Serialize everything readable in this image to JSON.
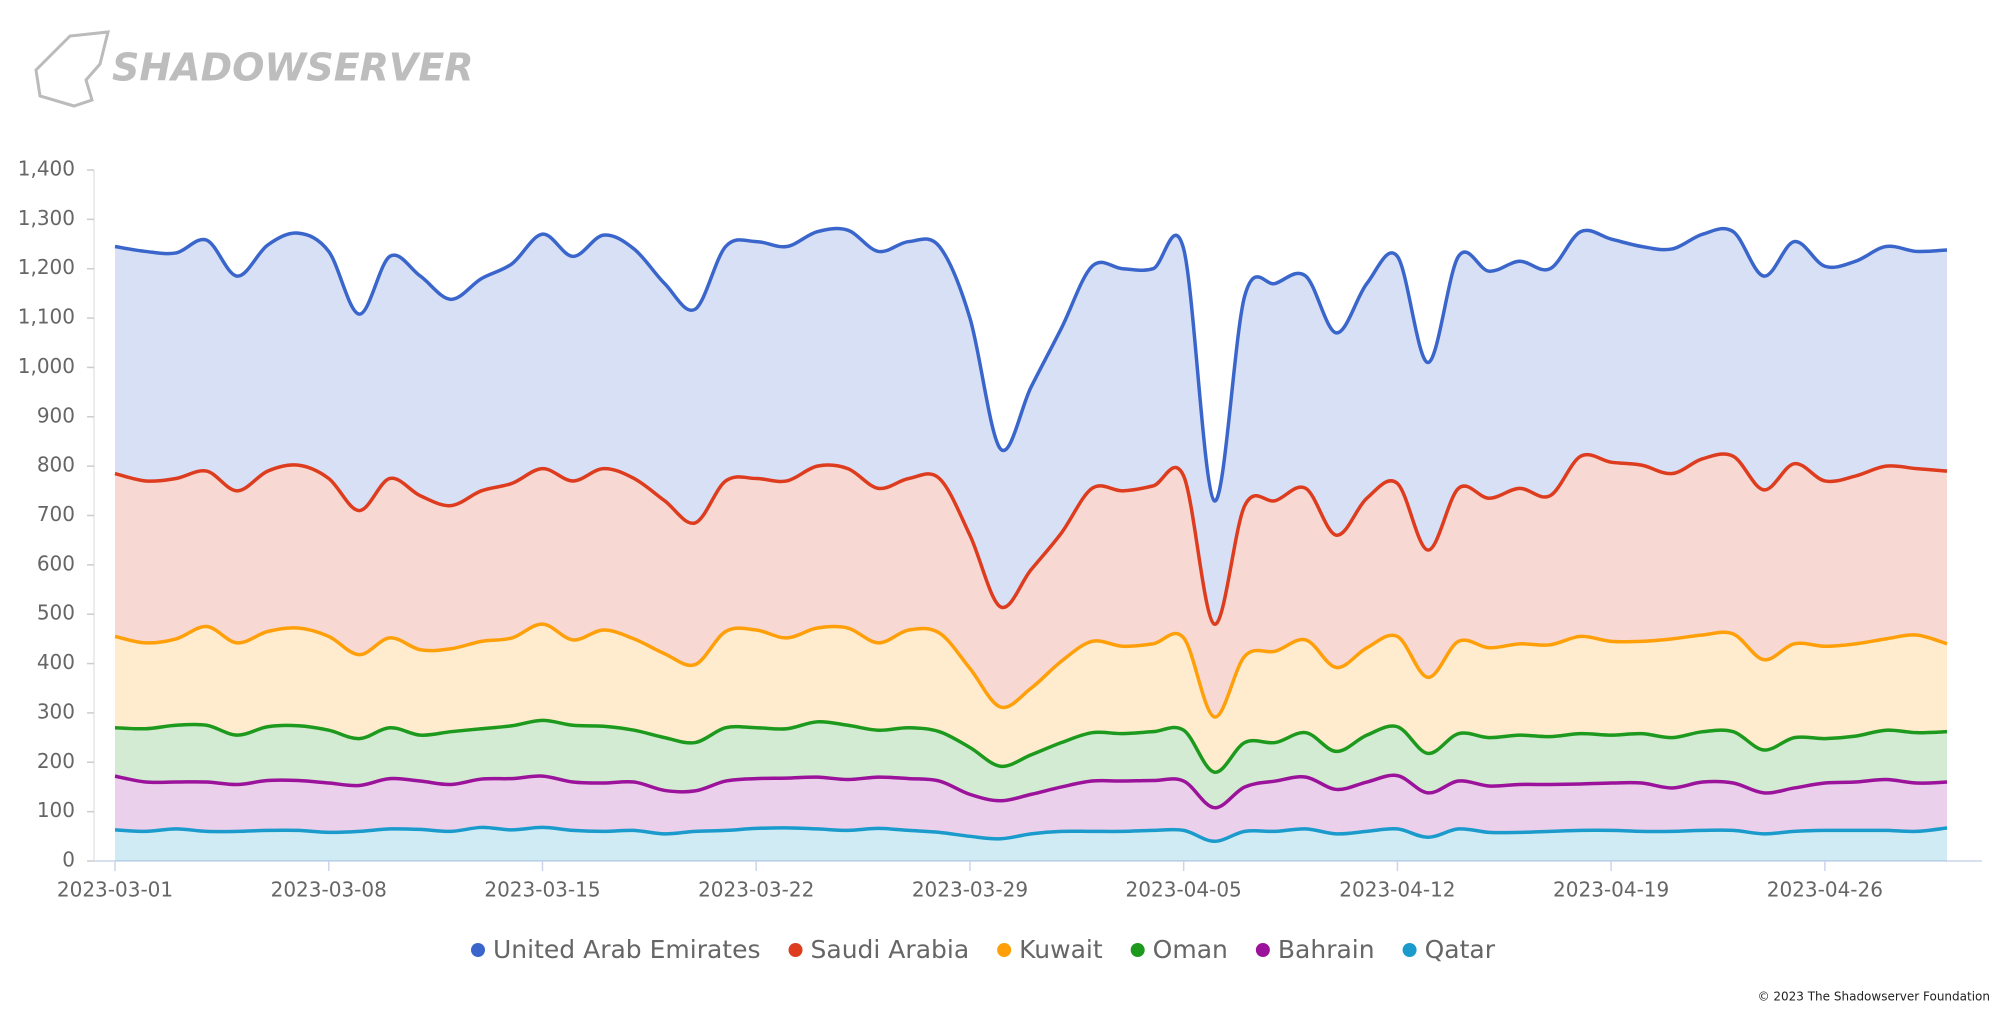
{
  "logo": "SHADOWSERVER",
  "copyright": "© 2023 The Shadowserver Foundation",
  "chart_data": {
    "type": "stacked_area",
    "categories": [
      "2023-03-01",
      null,
      null,
      null,
      null,
      null,
      null,
      "2023-03-08",
      null,
      null,
      null,
      null,
      null,
      null,
      "2023-03-15",
      null,
      null,
      null,
      null,
      null,
      null,
      "2023-03-22",
      null,
      null,
      null,
      null,
      null,
      null,
      "2023-03-29",
      null,
      null,
      null,
      null,
      null,
      null,
      "2023-04-05",
      null,
      null,
      null,
      null,
      null,
      null,
      "2023-04-12",
      null,
      null,
      null,
      null,
      null,
      null,
      "2023-04-19",
      null,
      null,
      null,
      null,
      null,
      null,
      "2023-04-26",
      null,
      null,
      null,
      null
    ],
    "ylim": [
      0,
      1400
    ],
    "yticks": [
      0,
      100,
      200,
      300,
      400,
      500,
      600,
      700,
      800,
      900,
      {
        "value": 1000,
        "label": "1,000"
      },
      {
        "value": 1100,
        "label": "1,100"
      },
      {
        "value": 1200,
        "label": "1,200"
      },
      {
        "value": 1300,
        "label": "1,300"
      },
      {
        "value": 1400,
        "label": "1,400"
      }
    ],
    "grid": false,
    "legend": "bottom",
    "series": [
      {
        "name": "United Arab Emirates",
        "color": "#3a66cc",
        "values": [
          460,
          465,
          457,
          468,
          435,
          458,
          470,
          460,
          398,
          450,
          445,
          418,
          430,
          445,
          475,
          455,
          473,
          465,
          440,
          433,
          475,
          480,
          475,
          475,
          483,
          480,
          480,
          470,
          440,
          320,
          370,
          415,
          450,
          450,
          440,
          460,
          250,
          425,
          440,
          430,
          410,
          435,
          460,
          380,
          470,
          460,
          460,
          460,
          455,
          452,
          443,
          455,
          455,
          455,
          433,
          450,
          435,
          435,
          445,
          440,
          448
        ]
      },
      {
        "name": "Saudi Arabia",
        "color": "#dd3c1e",
        "values": [
          330,
          328,
          325,
          315,
          308,
          325,
          330,
          320,
          292,
          323,
          312,
          290,
          305,
          313,
          315,
          322,
          327,
          325,
          310,
          287,
          305,
          307,
          318,
          328,
          323,
          313,
          307,
          313,
          270,
          203,
          240,
          260,
          310,
          315,
          320,
          328,
          188,
          305,
          305,
          307,
          268,
          303,
          310,
          258,
          310,
          303,
          315,
          302,
          365,
          363,
          357,
          335,
          357,
          360,
          344,
          365,
          335,
          340,
          350,
          337,
          350
        ]
      },
      {
        "name": "Kuwait",
        "color": "#ff9f0a",
        "values": [
          185,
          174,
          175,
          200,
          187,
          193,
          198,
          190,
          170,
          182,
          173,
          168,
          177,
          178,
          195,
          173,
          195,
          185,
          170,
          158,
          195,
          198,
          184,
          190,
          197,
          177,
          198,
          200,
          160,
          120,
          135,
          165,
          185,
          177,
          178,
          187,
          112,
          175,
          185,
          188,
          170,
          177,
          183,
          154,
          187,
          182,
          185,
          186,
          197,
          190,
          187,
          200,
          196,
          198,
          183,
          190,
          187,
          187,
          185,
          198,
          178
        ]
      },
      {
        "name": "Oman",
        "color": "#1d9a1d",
        "values": [
          98,
          108,
          115,
          115,
          100,
          109,
          111,
          107,
          95,
          103,
          93,
          107,
          102,
          107,
          113,
          115,
          115,
          105,
          107,
          98,
          108,
          103,
          100,
          112,
          110,
          95,
          103,
          100,
          95,
          70,
          80,
          90,
          98,
          96,
          99,
          103,
          72,
          90,
          78,
          90,
          77,
          95,
          99,
          80,
          96,
          98,
          100,
          97,
          102,
          97,
          100,
          102,
          102,
          104,
          87,
          102,
          90,
          93,
          100,
          102,
          102
        ]
      },
      {
        "name": "Bahrain",
        "color": "#9b139b",
        "values": [
          109,
          100,
          95,
          100,
          95,
          101,
          101,
          100,
          93,
          102,
          98,
          95,
          98,
          104,
          104,
          98,
          98,
          98,
          88,
          82,
          100,
          101,
          101,
          105,
          103,
          104,
          105,
          104,
          85,
          77,
          80,
          90,
          102,
          102,
          101,
          100,
          68,
          90,
          102,
          105,
          90,
          100,
          108,
          90,
          97,
          94,
          97,
          95,
          94,
          96,
          98,
          88,
          98,
          96,
          83,
          88,
          96,
          98,
          103,
          98,
          93
        ]
      },
      {
        "name": "Qatar",
        "color": "#1a9bcc",
        "values": [
          63,
          60,
          65,
          60,
          60,
          62,
          62,
          58,
          60,
          65,
          64,
          60,
          68,
          63,
          68,
          62,
          60,
          62,
          55,
          60,
          62,
          66,
          67,
          65,
          62,
          66,
          62,
          58,
          50,
          45,
          55,
          60,
          60,
          60,
          62,
          62,
          40,
          60,
          60,
          65,
          55,
          60,
          65,
          48,
          65,
          58,
          58,
          60,
          62,
          62,
          60,
          60,
          62,
          62,
          55,
          60,
          62,
          62,
          62,
          60,
          67
        ]
      }
    ]
  }
}
